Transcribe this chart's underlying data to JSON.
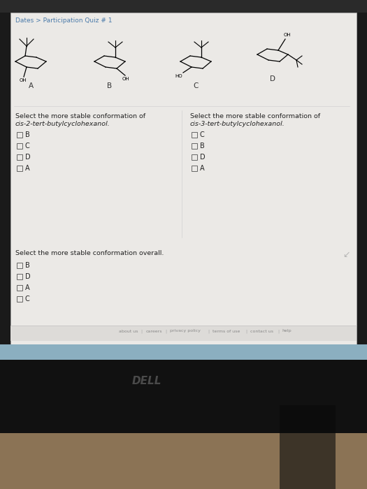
{
  "bg_outer": "#1a1a1a",
  "bg_monitor": "#1c1c1c",
  "bg_bezel": "#8ab0c0",
  "screen_color": "#e8e6e3",
  "screen_border": "#bbbbbb",
  "breadcrumb": "Dates > Participation Quiz # 1",
  "breadcrumb_color": "#4a7aaa",
  "breadcrumb_fontsize": 6.5,
  "molecule_labels": [
    "A",
    "B",
    "C",
    "D"
  ],
  "q1_title_line1": "Select the more stable conformation of",
  "q1_title_line2": "cis-2-tert-butylcyclohexanol.",
  "q1_options": [
    "B",
    "C",
    "D",
    "A"
  ],
  "q2_title_line1": "Select the more stable conformation of",
  "q2_title_line2": "cis-3-tert-butylcyclohexanol.",
  "q2_options": [
    "C",
    "B",
    "D",
    "A"
  ],
  "q3_title": "Select the more stable conformation overall.",
  "q3_options": [
    "B",
    "D",
    "A",
    "C"
  ],
  "footer_links": [
    "about us",
    "careers",
    "privacy policy",
    "terms of use",
    "contact us",
    "help"
  ],
  "dell_color": "#4a4a4a",
  "text_color": "#222222",
  "footer_color": "#888888",
  "title_fontsize": 6.8,
  "option_fontsize": 7.0,
  "label_fontsize": 7.5
}
